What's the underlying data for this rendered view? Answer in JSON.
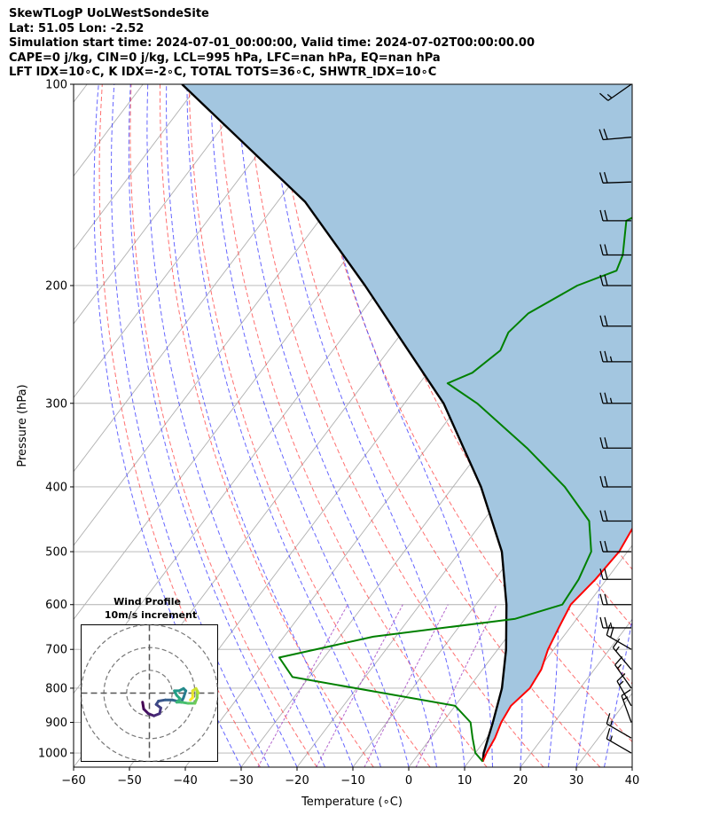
{
  "header": {
    "title": "SkewTLogP UoLWestSondeSite",
    "location": "Lat: 51.05   Lon: -2.52",
    "times": "Simulation start time: 2024-07-01_00:00:00, Valid time: 2024-07-02T00:00:00.00",
    "parcel_indices": "CAPE=0 j/kg, CIN=0 j/kg, LCL=995 hPa, LFC=nan hPa, EQ=nan hPa",
    "stability_indices": "LFT IDX=10∘C, K IDX=-2∘C, TOTAL TOTS=36∘C, SHWTR_IDX=10∘C"
  },
  "chart_data": [
    {
      "type": "line",
      "subtype": "skew-t log-p",
      "xlabel": "Temperature (∘C)",
      "ylabel": "Pressure (hPa)",
      "xlim": [
        -60,
        40
      ],
      "ylim": [
        1050,
        100
      ],
      "yscale": "log",
      "skew_deg_per_decade": 90.5,
      "xticks": [
        -60,
        -50,
        -40,
        -30,
        -20,
        -10,
        0,
        10,
        20,
        30,
        40
      ],
      "xtick_labels": [
        "−60",
        "−50",
        "−40",
        "−30",
        "−20",
        "−10",
        "0",
        "10",
        "20",
        "30",
        "40"
      ],
      "yticks": [
        100,
        200,
        300,
        400,
        500,
        600,
        700,
        800,
        900,
        1000
      ],
      "grid": true,
      "colors": {
        "temperature": "#ff0000",
        "dewpoint": "#008000",
        "parcel": "#000000",
        "fill": "#a3c6e0",
        "isotherm": "#b0b0b0",
        "dry_adiabat": "#ff4040",
        "moist_adiabat": "#4040ff",
        "mixing_ratio": "#a040c0"
      },
      "series": [
        {
          "role": "temperature",
          "points": [
            [
              100,
              17
            ],
            [
              110,
              15
            ],
            [
              130,
              11
            ],
            [
              150,
              7
            ],
            [
              190,
              0
            ],
            [
              220,
              -6
            ],
            [
              235,
              -9
            ],
            [
              240,
              -10
            ],
            [
              300,
              -2
            ],
            [
              350,
              2
            ],
            [
              400,
              5
            ],
            [
              450,
              7.5
            ],
            [
              500,
              8.5
            ],
            [
              550,
              8
            ],
            [
              600,
              7
            ],
            [
              650,
              8
            ],
            [
              700,
              9
            ],
            [
              750,
              10.5
            ],
            [
              800,
              11
            ],
            [
              850,
              10
            ],
            [
              900,
              10.5
            ],
            [
              950,
              11.5
            ],
            [
              1000,
              12
            ],
            [
              1030,
              12.5
            ]
          ]
        },
        {
          "role": "dewpoint",
          "points": [
            [
              100,
              -10
            ],
            [
              120,
              -19
            ],
            [
              150,
              -31
            ],
            [
              160,
              -35
            ],
            [
              180,
              -31
            ],
            [
              190,
              -30
            ],
            [
              200,
              -35
            ],
            [
              220,
              -40
            ],
            [
              235,
              -41
            ],
            [
              250,
              -40
            ],
            [
              270,
              -42
            ],
            [
              280,
              -45
            ],
            [
              300,
              -37
            ],
            [
              350,
              -22
            ],
            [
              400,
              -10
            ],
            [
              450,
              -1
            ],
            [
              500,
              3.5
            ],
            [
              550,
              5
            ],
            [
              600,
              5.5
            ],
            [
              630,
              -1
            ],
            [
              670,
              -24
            ],
            [
              720,
              -38
            ],
            [
              770,
              -33
            ],
            [
              850,
              0
            ],
            [
              900,
              5
            ],
            [
              950,
              7.5
            ],
            [
              1000,
              10
            ],
            [
              1030,
              12.5
            ]
          ]
        },
        {
          "role": "parcel",
          "points": [
            [
              1030,
              12.5
            ],
            [
              1000,
              11.5
            ],
            [
              900,
              9
            ],
            [
              800,
              6
            ],
            [
              700,
              1.5
            ],
            [
              600,
              -4.5
            ],
            [
              500,
              -12.5
            ],
            [
              400,
              -25
            ],
            [
              300,
              -43
            ],
            [
              200,
              -73
            ],
            [
              150,
              -95
            ],
            [
              100,
              -133
            ]
          ]
        }
      ],
      "wind_barbs": [
        {
          "p": 100,
          "dir": 235,
          "kt": 15
        },
        {
          "p": 120,
          "dir": 265,
          "kt": 20
        },
        {
          "p": 140,
          "dir": 268,
          "kt": 20
        },
        {
          "p": 160,
          "dir": 270,
          "kt": 20
        },
        {
          "p": 180,
          "dir": 270,
          "kt": 20
        },
        {
          "p": 200,
          "dir": 270,
          "kt": 20
        },
        {
          "p": 230,
          "dir": 270,
          "kt": 20
        },
        {
          "p": 260,
          "dir": 270,
          "kt": 25
        },
        {
          "p": 300,
          "dir": 270,
          "kt": 25
        },
        {
          "p": 350,
          "dir": 270,
          "kt": 20
        },
        {
          "p": 400,
          "dir": 270,
          "kt": 20
        },
        {
          "p": 450,
          "dir": 270,
          "kt": 20
        },
        {
          "p": 500,
          "dir": 270,
          "kt": 20
        },
        {
          "p": 550,
          "dir": 270,
          "kt": 20
        },
        {
          "p": 600,
          "dir": 270,
          "kt": 20
        },
        {
          "p": 650,
          "dir": 270,
          "kt": 25
        },
        {
          "p": 700,
          "dir": 300,
          "kt": 20
        },
        {
          "p": 750,
          "dir": 320,
          "kt": 15
        },
        {
          "p": 800,
          "dir": 325,
          "kt": 15
        },
        {
          "p": 850,
          "dir": 330,
          "kt": 15
        },
        {
          "p": 900,
          "dir": 340,
          "kt": 15
        },
        {
          "p": 950,
          "dir": 300,
          "kt": 15
        },
        {
          "p": 1000,
          "dir": 300,
          "kt": 15
        }
      ]
    },
    {
      "type": "scatter",
      "subtype": "hodograph",
      "title": "Wind Profile",
      "subtitle": "10m/s increment",
      "rings_ms": [
        10,
        20,
        30
      ],
      "xlim": [
        -30,
        30
      ],
      "ylim": [
        -30,
        30
      ],
      "colormap": "viridis",
      "points": [
        [
          -3,
          -4
        ],
        [
          -2.5,
          -7
        ],
        [
          -0.5,
          -9
        ],
        [
          2,
          -10
        ],
        [
          4.5,
          -9
        ],
        [
          5,
          -6.5
        ],
        [
          3,
          -5
        ],
        [
          4,
          -3.5
        ],
        [
          7,
          -3
        ],
        [
          10,
          -3
        ],
        [
          14,
          -4
        ],
        [
          15,
          -2
        ],
        [
          16,
          1
        ],
        [
          15,
          2
        ],
        [
          13,
          1
        ],
        [
          11,
          1
        ],
        [
          12,
          -1
        ],
        [
          13.5,
          -2.5
        ],
        [
          12,
          -4
        ],
        [
          14,
          -4
        ],
        [
          17,
          -4.5
        ],
        [
          20,
          -4.5
        ],
        [
          21,
          -2
        ],
        [
          21,
          1
        ],
        [
          21.5,
          0
        ],
        [
          20.5,
          2
        ],
        [
          19,
          1
        ],
        [
          19,
          -2
        ],
        [
          18,
          -3
        ]
      ]
    }
  ]
}
